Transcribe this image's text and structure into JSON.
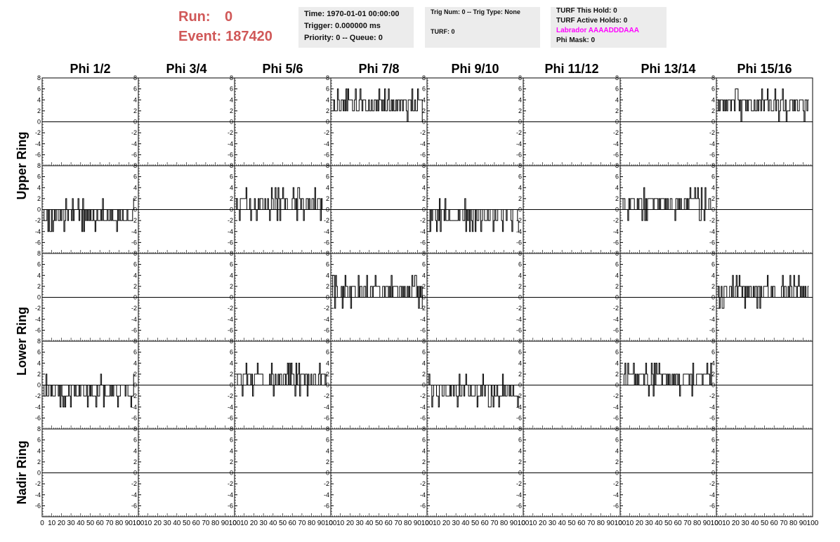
{
  "header": {
    "run_label": "Run:",
    "run_value": "0",
    "event_label": "Event:",
    "event_value": "187420"
  },
  "info_box_1": {
    "time": "Time: 1970-01-01 00:00:00",
    "trigger": "Trigger: 0.000000 ms",
    "priority": "Priority: 0 -- Queue: 0"
  },
  "info_box_2": {
    "trig": "Trig Num: 0 -- Trig Type: None",
    "turf": "TURF: 0"
  },
  "info_box_3": {
    "this_hold": "TURF This Hold: 0",
    "active_holds": "TURF Active Holds: 0",
    "labrador": "Labrador AAAADDDAAA",
    "phi_mask": "Phi Mask: 0"
  },
  "colors": {
    "run_text": "#d05858",
    "labrador_text": "#ff00ff",
    "info_bg": "#ececec",
    "trace": "#000000"
  },
  "columns": [
    "Phi 1/2",
    "Phi 3/4",
    "Phi 5/6",
    "Phi 7/8",
    "Phi 9/10",
    "Phi 11/12",
    "Phi 13/14",
    "Phi 15/16"
  ],
  "ring_labels": [
    "Upper Ring",
    "Lower Ring",
    "Nadir Ring"
  ],
  "y_tick_labels": [
    "8",
    "6",
    "4",
    "2",
    "0",
    "-2",
    "-4",
    "-6"
  ],
  "x_tick_labels": [
    "0",
    "10",
    "20",
    "30",
    "40",
    "50",
    "60",
    "70",
    "80",
    "90",
    "100"
  ],
  "chart_data": {
    "type": "line",
    "xlim": [
      0,
      100
    ],
    "ylim": [
      -8,
      8
    ],
    "rows": 5,
    "cols": 8,
    "active_panels": [
      {
        "row": 0,
        "col": 3,
        "level": "4"
      },
      {
        "row": 0,
        "col": 7,
        "level": "4"
      },
      {
        "row": 1,
        "col": 0,
        "level": "-2"
      },
      {
        "row": 1,
        "col": 2,
        "level": "2"
      },
      {
        "row": 1,
        "col": 4,
        "level": "-2"
      },
      {
        "row": 1,
        "col": 6,
        "level": "2"
      },
      {
        "row": 2,
        "col": 3,
        "level": "2"
      },
      {
        "row": 2,
        "col": 7,
        "level": "2"
      },
      {
        "row": 3,
        "col": 0,
        "level": "-2"
      },
      {
        "row": 3,
        "col": 2,
        "level": "2"
      },
      {
        "row": 3,
        "col": 4,
        "level": "-2"
      },
      {
        "row": 3,
        "col": 6,
        "level": "2"
      }
    ]
  }
}
